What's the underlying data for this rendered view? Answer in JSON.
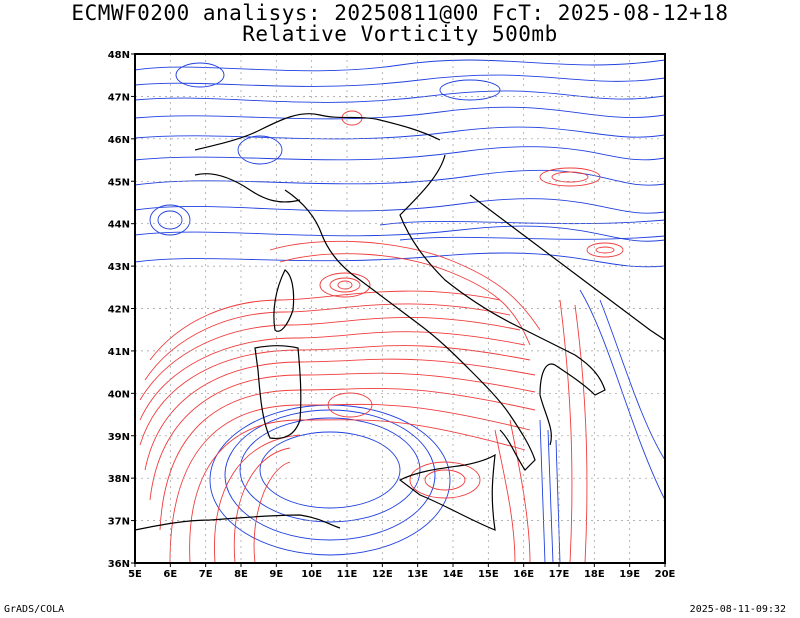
{
  "header": {
    "line1": "ECMWF0200 analisys: 20250811@00 FcT: 2025-08-12+18",
    "line2": "Relative Vorticity 500mb"
  },
  "footer": {
    "credit": "GrADS/COLA",
    "timestamp": "2025-08-11-09:32"
  },
  "axes": {
    "lon_labels": [
      "5E",
      "6E",
      "7E",
      "8E",
      "9E",
      "10E",
      "11E",
      "12E",
      "13E",
      "14E",
      "15E",
      "16E",
      "17E",
      "18E",
      "19E",
      "20E"
    ],
    "lat_labels": [
      "48N",
      "47N",
      "46N",
      "45N",
      "44N",
      "43N",
      "42N",
      "41N",
      "40N",
      "39N",
      "38N",
      "37N",
      "36N"
    ],
    "lon_range": [
      5,
      20
    ],
    "lat_range": [
      36,
      48
    ]
  },
  "colors": {
    "positive_vorticity": "#f03c3c",
    "negative_vorticity": "#2040e0",
    "coastline": "#000000",
    "grid": "#999999"
  }
}
